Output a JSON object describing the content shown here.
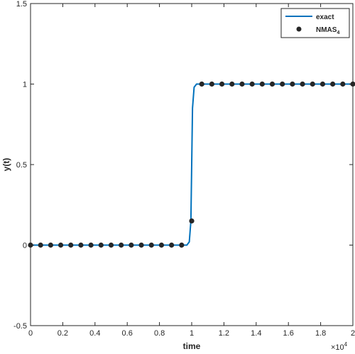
{
  "chart_data": {
    "type": "line",
    "xlabel": "time",
    "ylabel": "y(t)",
    "x_exponent_base": "×10",
    "x_exponent_power": "4",
    "xlim": [
      0,
      20000
    ],
    "ylim": [
      -0.5,
      1.5
    ],
    "x_ticks": [
      0,
      2000,
      4000,
      6000,
      8000,
      10000,
      12000,
      14000,
      16000,
      18000,
      20000
    ],
    "x_tick_labels": [
      "0",
      "0.2",
      "0.4",
      "0.6",
      "0.8",
      "1",
      "1.2",
      "1.4",
      "1.6",
      "1.8",
      "2"
    ],
    "y_ticks": [
      -0.5,
      0,
      0.5,
      1,
      1.5
    ],
    "y_tick_labels": [
      "-0.5",
      "0",
      "0.5",
      "1",
      "1.5"
    ],
    "grid": false,
    "legend_position": "top-right",
    "series": [
      {
        "name": "exact",
        "style": "line",
        "color": "#0072BD",
        "x": [
          0,
          9700,
          9850,
          9950,
          10000,
          10050,
          10150,
          10300,
          20000
        ],
        "y": [
          0,
          0,
          0.02,
          0.15,
          0.5,
          0.85,
          0.98,
          1,
          1
        ]
      },
      {
        "name": "NMAS",
        "name_subscript": "4",
        "style": "markers",
        "color": "#262626",
        "x": [
          0,
          625,
          1250,
          1875,
          2500,
          3125,
          3750,
          4375,
          5000,
          5625,
          6250,
          6875,
          7500,
          8125,
          8750,
          9375,
          10000,
          10625,
          11250,
          11875,
          12500,
          13125,
          13750,
          14375,
          15000,
          15625,
          16250,
          16875,
          17500,
          18125,
          18750,
          19375,
          20000
        ],
        "y": [
          0,
          0,
          0,
          0,
          0,
          0,
          0,
          0,
          0,
          0,
          0,
          0,
          0,
          0,
          0,
          0,
          0.15,
          1,
          1,
          1,
          1,
          1,
          1,
          1,
          1,
          1,
          1,
          1,
          1,
          1,
          1,
          1,
          1
        ]
      }
    ]
  }
}
